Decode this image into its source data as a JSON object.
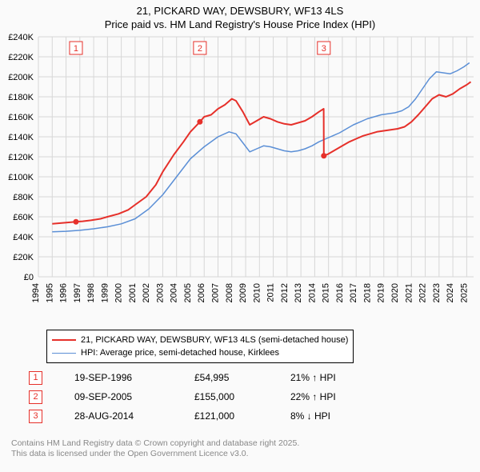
{
  "title_line1": "21, PICKARD WAY, DEWSBURY, WF13 4LS",
  "title_line2": "Price paid vs. HM Land Registry's House Price Index (HPI)",
  "chart": {
    "type": "line",
    "background_color": "#fafafa",
    "grid_color": "#d7d7d7",
    "axis_color": "#555555",
    "tick_font_size": 11,
    "x_years": [
      1994,
      1995,
      1996,
      1997,
      1998,
      1999,
      2000,
      2001,
      2002,
      2003,
      2004,
      2005,
      2006,
      2007,
      2008,
      2009,
      2010,
      2011,
      2012,
      2013,
      2014,
      2015,
      2016,
      2017,
      2018,
      2019,
      2020,
      2021,
      2022,
      2023,
      2024,
      2025
    ],
    "xlim": [
      1994,
      2025.5
    ],
    "ylim": [
      0,
      240000
    ],
    "ytick_step": 20000,
    "ytick_labels": [
      "£0",
      "£20K",
      "£40K",
      "£60K",
      "£80K",
      "£100K",
      "£120K",
      "£140K",
      "£160K",
      "£180K",
      "£200K",
      "£220K",
      "£240K"
    ],
    "series": [
      {
        "name": "price_paid",
        "label": "21, PICKARD WAY, DEWSBURY, WF13 4LS (semi-detached house)",
        "color": "#e6302a",
        "line_width": 2,
        "points": [
          [
            1995.0,
            53000
          ],
          [
            1996.7,
            54995
          ],
          [
            1997.2,
            55500
          ],
          [
            1997.8,
            56500
          ],
          [
            1998.5,
            58000
          ],
          [
            1999.0,
            60000
          ],
          [
            1999.8,
            63000
          ],
          [
            2000.5,
            67000
          ],
          [
            2001.0,
            72000
          ],
          [
            2001.8,
            80000
          ],
          [
            2002.5,
            92000
          ],
          [
            2003.0,
            105000
          ],
          [
            2003.8,
            122000
          ],
          [
            2004.5,
            135000
          ],
          [
            2005.0,
            145000
          ],
          [
            2005.69,
            155000
          ],
          [
            2006.0,
            160000
          ],
          [
            2006.5,
            162000
          ],
          [
            2007.0,
            168000
          ],
          [
            2007.5,
            172000
          ],
          [
            2008.0,
            178000
          ],
          [
            2008.3,
            176000
          ],
          [
            2008.8,
            165000
          ],
          [
            2009.3,
            152000
          ],
          [
            2009.8,
            156000
          ],
          [
            2010.3,
            160000
          ],
          [
            2010.8,
            158000
          ],
          [
            2011.3,
            155000
          ],
          [
            2011.8,
            153000
          ],
          [
            2012.3,
            152000
          ],
          [
            2012.8,
            154000
          ],
          [
            2013.3,
            156000
          ],
          [
            2013.8,
            160000
          ],
          [
            2014.3,
            165000
          ],
          [
            2014.65,
            168000
          ],
          [
            2014.66,
            121000
          ],
          [
            2015.0,
            123000
          ],
          [
            2015.5,
            127000
          ],
          [
            2016.0,
            131000
          ],
          [
            2016.5,
            135000
          ],
          [
            2017.0,
            138000
          ],
          [
            2017.5,
            141000
          ],
          [
            2018.0,
            143000
          ],
          [
            2018.5,
            145000
          ],
          [
            2019.0,
            146000
          ],
          [
            2019.5,
            147000
          ],
          [
            2020.0,
            148000
          ],
          [
            2020.5,
            150000
          ],
          [
            2021.0,
            155000
          ],
          [
            2021.5,
            162000
          ],
          [
            2022.0,
            170000
          ],
          [
            2022.5,
            178000
          ],
          [
            2023.0,
            182000
          ],
          [
            2023.5,
            180000
          ],
          [
            2024.0,
            183000
          ],
          [
            2024.5,
            188000
          ],
          [
            2025.0,
            192000
          ],
          [
            2025.3,
            195000
          ]
        ]
      },
      {
        "name": "hpi",
        "label": "HPI: Average price, semi-detached house, Kirklees",
        "color": "#5b8fd6",
        "line_width": 1.5,
        "points": [
          [
            1995.0,
            45000
          ],
          [
            1996.0,
            45500
          ],
          [
            1997.0,
            46500
          ],
          [
            1998.0,
            48000
          ],
          [
            1999.0,
            50000
          ],
          [
            2000.0,
            53000
          ],
          [
            2001.0,
            58000
          ],
          [
            2002.0,
            68000
          ],
          [
            2003.0,
            82000
          ],
          [
            2004.0,
            100000
          ],
          [
            2005.0,
            118000
          ],
          [
            2006.0,
            130000
          ],
          [
            2007.0,
            140000
          ],
          [
            2007.8,
            145000
          ],
          [
            2008.3,
            143000
          ],
          [
            2008.8,
            134000
          ],
          [
            2009.3,
            125000
          ],
          [
            2009.8,
            128000
          ],
          [
            2010.3,
            131000
          ],
          [
            2010.8,
            130000
          ],
          [
            2011.3,
            128000
          ],
          [
            2011.8,
            126000
          ],
          [
            2012.3,
            125000
          ],
          [
            2012.8,
            126000
          ],
          [
            2013.3,
            128000
          ],
          [
            2013.8,
            131000
          ],
          [
            2014.3,
            135000
          ],
          [
            2014.8,
            138000
          ],
          [
            2015.3,
            141000
          ],
          [
            2015.8,
            144000
          ],
          [
            2016.3,
            148000
          ],
          [
            2016.8,
            152000
          ],
          [
            2017.3,
            155000
          ],
          [
            2017.8,
            158000
          ],
          [
            2018.3,
            160000
          ],
          [
            2018.8,
            162000
          ],
          [
            2019.3,
            163000
          ],
          [
            2019.8,
            164000
          ],
          [
            2020.3,
            166000
          ],
          [
            2020.8,
            170000
          ],
          [
            2021.3,
            178000
          ],
          [
            2021.8,
            188000
          ],
          [
            2022.3,
            198000
          ],
          [
            2022.8,
            205000
          ],
          [
            2023.3,
            204000
          ],
          [
            2023.8,
            203000
          ],
          [
            2024.3,
            206000
          ],
          [
            2024.8,
            210000
          ],
          [
            2025.2,
            214000
          ]
        ]
      }
    ],
    "sale_markers": [
      {
        "n": "1",
        "x": 1996.72,
        "y": 54995
      },
      {
        "n": "2",
        "x": 2005.69,
        "y": 155000
      },
      {
        "n": "3",
        "x": 2014.66,
        "y": 121000
      }
    ],
    "marker_box_offset_y": -180,
    "marker_color": "#e6302a",
    "marker_fill": "#ffffff"
  },
  "legend": {
    "items": [
      {
        "color": "#e6302a",
        "width": 2,
        "label": "21, PICKARD WAY, DEWSBURY, WF13 4LS (semi-detached house)"
      },
      {
        "color": "#5b8fd6",
        "width": 1.5,
        "label": "HPI: Average price, semi-detached house, Kirklees"
      }
    ]
  },
  "sales": [
    {
      "n": "1",
      "date": "19-SEP-1996",
      "price": "£54,995",
      "diff": "21% ↑ HPI"
    },
    {
      "n": "2",
      "date": "09-SEP-2005",
      "price": "£155,000",
      "diff": "22% ↑ HPI"
    },
    {
      "n": "3",
      "date": "28-AUG-2014",
      "price": "£121,000",
      "diff": "8% ↓ HPI"
    }
  ],
  "footer_line1": "Contains HM Land Registry data © Crown copyright and database right 2025.",
  "footer_line2": "This data is licensed under the Open Government Licence v3.0."
}
